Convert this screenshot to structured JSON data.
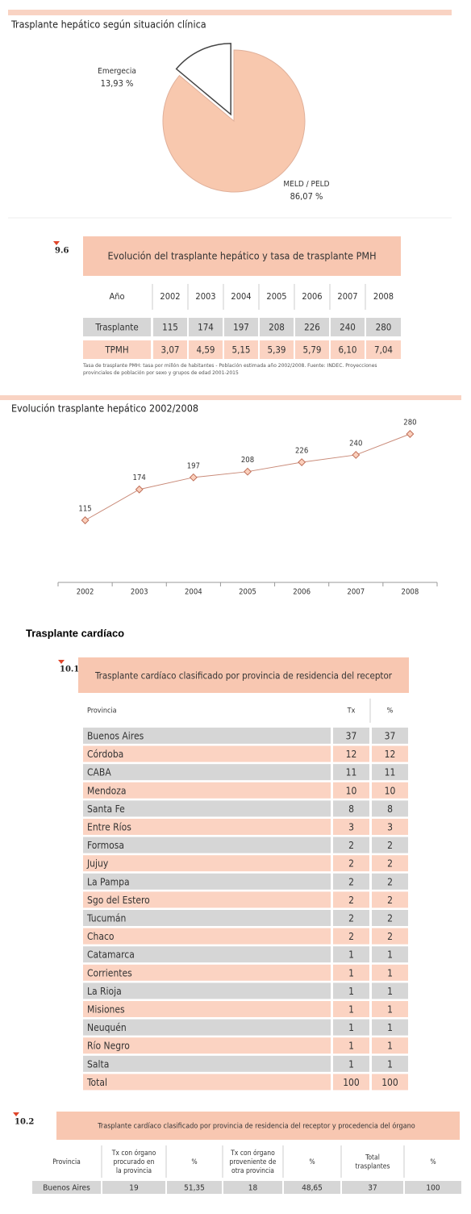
{
  "chart_data": [
    {
      "type": "pie",
      "title": "Trasplante hepático según situación clínica",
      "categories": [
        "Emergecia",
        "MELD / PELD"
      ],
      "values": [
        13.93,
        86.07
      ],
      "value_labels": [
        "13,93 %",
        "86,07 %"
      ],
      "colors": [
        "#ffffff",
        "#f8c8ae"
      ]
    },
    {
      "type": "line",
      "title": "Evolución trasplante hepático 2002/2008",
      "categories": [
        "2002",
        "2003",
        "2004",
        "2005",
        "2006",
        "2007",
        "2008"
      ],
      "values": [
        115,
        174,
        197,
        208,
        226,
        240,
        280
      ],
      "color": "#c98a78"
    }
  ],
  "table_9_6": {
    "number": "9.6",
    "title": "Evolución del trasplante hepático y tasa de trasplante PMH",
    "header": [
      "Año",
      "2002",
      "2003",
      "2004",
      "2005",
      "2006",
      "2007",
      "2008"
    ],
    "rows": [
      [
        "Trasplante",
        "115",
        "174",
        "197",
        "208",
        "226",
        "240",
        "280"
      ],
      [
        "TPMH",
        "3,07",
        "4,59",
        "5,15",
        "5,39",
        "5,79",
        "6,10",
        "7,04"
      ]
    ],
    "note": "Tasa de trasplante PMH: tasa por millón de habitantes - Población estimada año 2002/2008. Fuente: INDEC. Proyecciones provinciales de población por sexo y grupos de edad 2001-2015"
  },
  "section_heading": "Trasplante cardíaco",
  "table_10_1": {
    "number": "10.1",
    "title": "Trasplante cardíaco clasificado por provincia de residencia del receptor",
    "header": [
      "Provincia",
      "Tx",
      "%"
    ],
    "rows": [
      [
        "Buenos Aires",
        "37",
        "37"
      ],
      [
        "Córdoba",
        "12",
        "12"
      ],
      [
        "CABA",
        "11",
        "11"
      ],
      [
        "Mendoza",
        "10",
        "10"
      ],
      [
        "Santa Fe",
        "8",
        "8"
      ],
      [
        "Entre Ríos",
        "3",
        "3"
      ],
      [
        "Formosa",
        "2",
        "2"
      ],
      [
        "Jujuy",
        "2",
        "2"
      ],
      [
        "La Pampa",
        "2",
        "2"
      ],
      [
        "Sgo del Estero",
        "2",
        "2"
      ],
      [
        "Tucumán",
        "2",
        "2"
      ],
      [
        "Chaco",
        "2",
        "2"
      ],
      [
        "Catamarca",
        "1",
        "1"
      ],
      [
        "Corrientes",
        "1",
        "1"
      ],
      [
        "La Rioja",
        "1",
        "1"
      ],
      [
        "Misiones",
        "1",
        "1"
      ],
      [
        "Neuquén",
        "1",
        "1"
      ],
      [
        "Río Negro",
        "1",
        "1"
      ],
      [
        "Salta",
        "1",
        "1"
      ],
      [
        "Total",
        "100",
        "100"
      ]
    ]
  },
  "table_10_2": {
    "number": "10.2",
    "title": "Trasplante cardíaco clasificado por provincia de residencia del receptor y procedencia del órgano",
    "header": [
      "Provincia",
      "Tx con órgano procurado en la provincia",
      "%",
      "Tx con órgano proveniente de otra provincia",
      "%",
      "Total trasplantes",
      "%"
    ],
    "rows": [
      [
        "Buenos Aires",
        "19",
        "51,35",
        "18",
        "48,65",
        "37",
        "100"
      ]
    ]
  }
}
